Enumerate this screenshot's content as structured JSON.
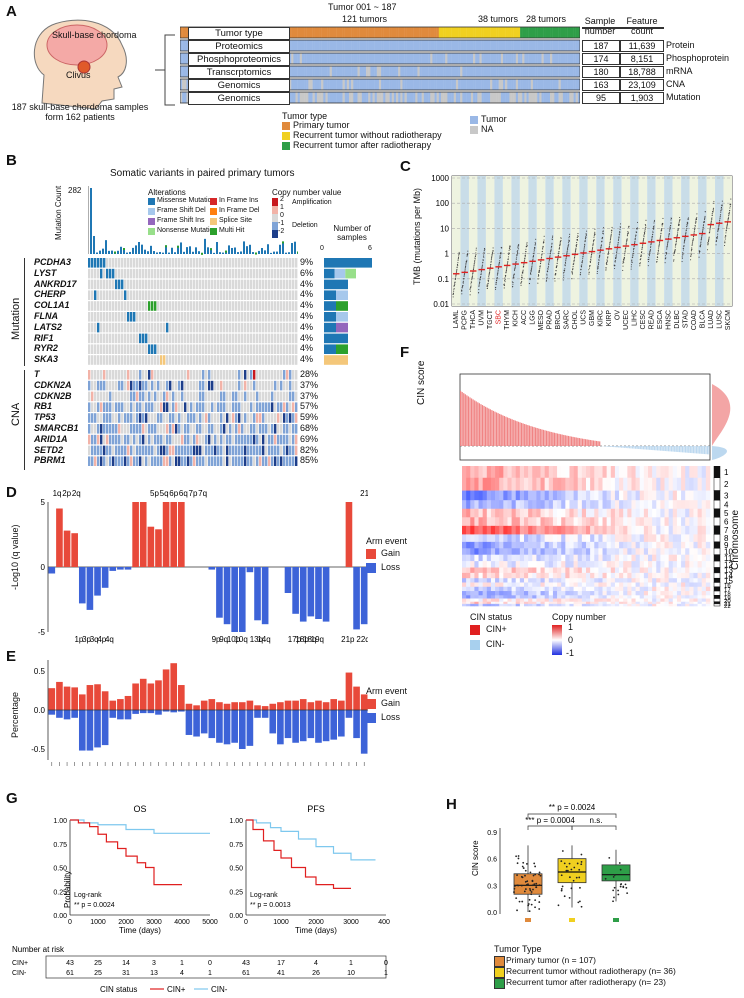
{
  "panelA": {
    "letter": "A",
    "head_skull": "Skull-base chordoma",
    "head_clivus": "Clivus",
    "caption": "187 skull-base chordoma samples form 162 patients",
    "top_label": "Tumor 001 ~ 187",
    "group_labels": [
      "121 tumors",
      "38 tumors",
      "28 tumors"
    ],
    "col_sample": "Sample number",
    "col_feature": "Feature count",
    "rows": [
      {
        "name": "Tumor type",
        "n": "",
        "f": "",
        "unit": ""
      },
      {
        "name": "Proteomics",
        "n": "187",
        "f": "11,639",
        "unit": "Protein"
      },
      {
        "name": "Phosphoproteomics",
        "n": "174",
        "f": "8,151",
        "unit": "Phosphoprotein"
      },
      {
        "name": "Transcrptomics",
        "n": "180",
        "f": "18,788",
        "unit": "mRNA"
      },
      {
        "name": "Genomics",
        "n": "163",
        "f": "23,109",
        "unit": "CNA"
      },
      {
        "name": "Genomics",
        "n": "95",
        "f": "1,903",
        "unit": "Mutation"
      }
    ],
    "legend_title": "Tumor type",
    "legend": [
      "Primary tumor",
      "Recurrent tumor without radiotherapy",
      "Recurrent tumor after radiotherapy"
    ],
    "legend2": [
      "Tumor",
      "NA"
    ],
    "colors": {
      "primary": "#e08a3c",
      "recur_no": "#f0d020",
      "recur_rt": "#2e9e48",
      "tumor": "#9ab8e6",
      "na": "#c8c8c8"
    }
  },
  "panelB": {
    "letter": "B",
    "title": "Somatic variants in paired primary tumors",
    "ylabel": "Mutation Count",
    "ymax": "282",
    "alt_title": "Alterations",
    "alterations": [
      "Missense Mutation",
      "Frame Shift Del",
      "Frame Shift Ins",
      "Nonsense Mutation",
      "In Frame Ins",
      "In Frame Del",
      "Splice Site",
      "Multi Hit"
    ],
    "cn_title": "Copy number value",
    "cn_labels": [
      "2",
      "1",
      "0",
      "-1",
      "-2"
    ],
    "amp": "Amplification",
    "del": "Deletion",
    "nsamples_title": "Number of samples",
    "nsamples_ticks": [
      "0",
      "6"
    ],
    "mutation_label": "Mutation",
    "cna_label": "CNA",
    "mut_genes": [
      "PCDHA3",
      "LYST",
      "ANKRD17",
      "CHERP",
      "COL1A1",
      "FLNA",
      "LATS2",
      "RIF1",
      "RYR2",
      "SKA3"
    ],
    "mut_pcts": [
      "9%",
      "6%",
      "4%",
      "4%",
      "4%",
      "4%",
      "4%",
      "4%",
      "4%",
      "4%"
    ],
    "cna_genes": [
      "T",
      "CDKN2A",
      "CDKN2B",
      "RB1",
      "TP53",
      "SMARCB1",
      "ARID1A",
      "SETD2",
      "PBRM1"
    ],
    "cna_pcts": [
      "28%",
      "37%",
      "37%",
      "57%",
      "59%",
      "68%",
      "69%",
      "82%",
      "85%"
    ]
  },
  "panelC": {
    "letter": "C",
    "ylabel": "TMB (mutations per Mb)",
    "yticks": [
      "1000",
      "100",
      "10",
      "1",
      "0.1",
      "0.01"
    ],
    "cancers": [
      "LAML",
      "PCPG",
      "THCA",
      "UVM",
      "TGCT",
      "SBC",
      "THYM",
      "KICH",
      "ACC",
      "LGG",
      "MESO",
      "PRAD",
      "BRCA",
      "SARC",
      "CHOL",
      "UCS",
      "GBM",
      "KIRC",
      "KIRP",
      "OV",
      "UCEC",
      "LIHC",
      "CESC",
      "READ",
      "ESCA",
      "HNSC",
      "DLBC",
      "STAD",
      "COAD",
      "BLCA",
      "LUAD",
      "LUSC",
      "SKCM"
    ],
    "highlight": "SBC"
  },
  "panelD": {
    "letter": "D",
    "ylabel": "-Log10 (q value)",
    "yticks": [
      "5",
      "0",
      "-5"
    ],
    "gain_labels": [
      "1q",
      "2p",
      "2q",
      "5p",
      "5q",
      "6p",
      "6q",
      "7p",
      "7q",
      "21p"
    ],
    "loss_labels": [
      "1p",
      "3p",
      "3q",
      "4p",
      "4q",
      "9p",
      "9q",
      "10p",
      "10q",
      "13q",
      "14q",
      "17p",
      "18p",
      "18q",
      "19q",
      "21p",
      "22q"
    ],
    "legend_title": "Arm event",
    "legend": [
      "Gain",
      "Loss"
    ]
  },
  "panelE": {
    "letter": "E",
    "ylabel": "Percentage",
    "yticks": [
      "0.5",
      "0.0",
      "-0.5"
    ],
    "legend_title": "Arm event",
    "legend": [
      "Gain",
      "Loss"
    ]
  },
  "panelF": {
    "letter": "F",
    "ylabel": "CIN score",
    "chr_title": "Chromosome",
    "chromosomes": [
      "1",
      "2",
      "3",
      "4",
      "5",
      "6",
      "7",
      "8",
      "9",
      "10",
      "11",
      "12",
      "13",
      "14",
      "15",
      "16",
      "17",
      "18",
      "19",
      "20",
      "21",
      "22"
    ],
    "status_title": "CIN status",
    "status": [
      "CIN+",
      "CIN-"
    ],
    "cn_title": "Copy number",
    "cn_ticks": [
      "1",
      "0",
      "-1"
    ]
  },
  "panelG": {
    "letter": "G",
    "os": {
      "title": "OS",
      "test": "Log-rank",
      "p": "** p = 0.0024",
      "xticks": [
        "0",
        "1000",
        "2000",
        "3000",
        "4000",
        "5000"
      ]
    },
    "pfs": {
      "title": "PFS",
      "test": "Log-rank",
      "p": "** p = 0.0013",
      "xticks": [
        "0",
        "1000",
        "2000",
        "3000",
        "4000"
      ]
    },
    "ylabel": "Probability",
    "yticks": [
      "1.00",
      "0.75",
      "0.50",
      "0.25",
      "0.00"
    ],
    "xlabel": "Time (days)",
    "risk_title": "Number at risk",
    "os_risk": {
      "cin_pos": [
        "43",
        "25",
        "14",
        "3",
        "1",
        "0"
      ],
      "cin_neg": [
        "61",
        "25",
        "31",
        "13",
        "4",
        "1"
      ]
    },
    "pfs_risk": {
      "cin_pos": [
        "43",
        "17",
        "4",
        "1",
        "0"
      ],
      "cin_neg": [
        "61",
        "41",
        "26",
        "10",
        "1"
      ]
    },
    "row_labels": [
      "CIN+",
      "CIN-"
    ],
    "legend_title": "CIN status",
    "legend": [
      "CIN+",
      "CIN-"
    ]
  },
  "panelH": {
    "letter": "H",
    "ylabel": "CIN score",
    "yticks": [
      "0.9",
      "0.6",
      "0.3",
      "0.0"
    ],
    "sig": [
      "** p = 0.0024",
      "*** p = 0.0004",
      "n.s."
    ],
    "legend_title": "Tumor Type",
    "legend": [
      "Primary tumor (n = 107)",
      "Recurrent tumor without radiotherapy (n= 36)",
      "Recurrent tumor after radiotherapy (n= 23)"
    ],
    "boxes": [
      {
        "q1": 0.2,
        "median": 0.3,
        "q3": 0.43,
        "min": 0.0,
        "max": 0.75
      },
      {
        "q1": 0.33,
        "median": 0.45,
        "q3": 0.6,
        "min": 0.05,
        "max": 0.75
      },
      {
        "q1": 0.35,
        "median": 0.42,
        "q3": 0.53,
        "min": 0.12,
        "max": 0.7
      }
    ]
  }
}
